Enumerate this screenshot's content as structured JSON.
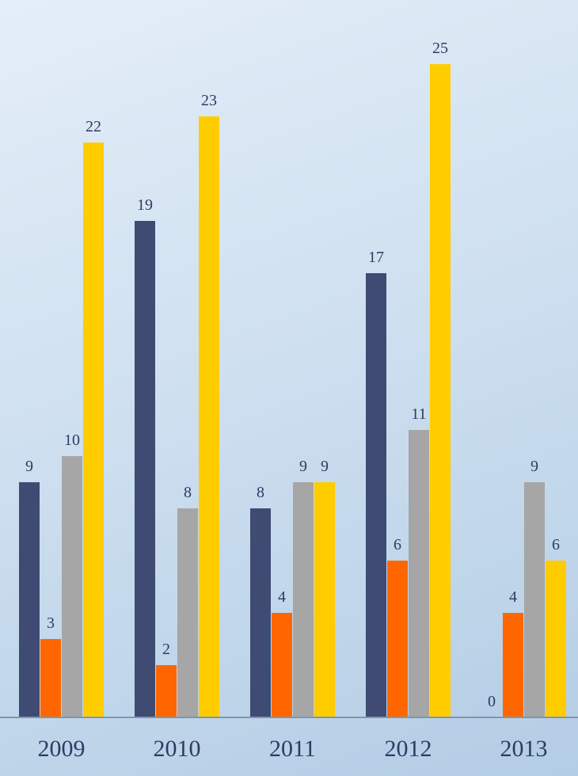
{
  "chart_data": {
    "type": "bar",
    "categories": [
      "2009",
      "2010",
      "2011",
      "2012",
      "2013"
    ],
    "series": [
      {
        "values": [
          9,
          19,
          8,
          17,
          0
        ],
        "color": "#3f4b73"
      },
      {
        "values": [
          3,
          2,
          4,
          6,
          4
        ],
        "color": "#ff6600"
      },
      {
        "values": [
          10,
          8,
          9,
          11,
          9
        ],
        "color": "#a6a6a6"
      },
      {
        "values": [
          22,
          23,
          9,
          25,
          6
        ],
        "color": "#ffcc00"
      }
    ],
    "ylim": [
      0,
      25
    ],
    "grid": false,
    "legend": "none",
    "axis_color": "#8094ad",
    "label_color": "#2f3a63"
  }
}
